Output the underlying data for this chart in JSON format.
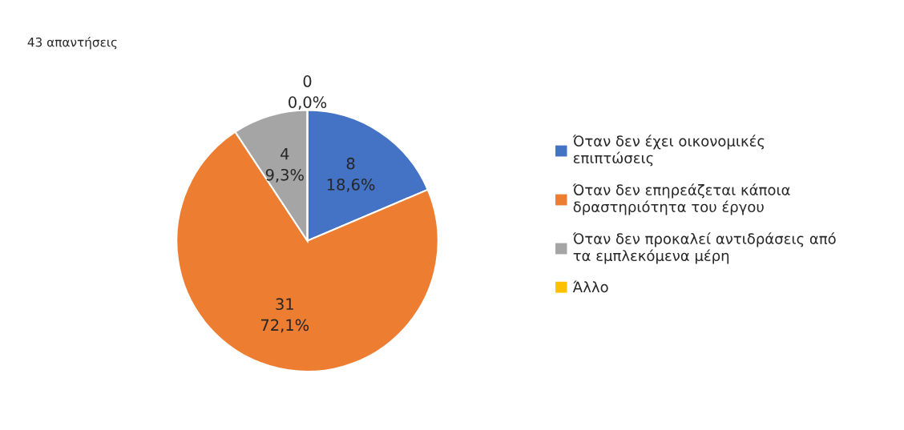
{
  "chart_data": {
    "type": "pie",
    "title": "43 απαντήσεις",
    "categories": [
      "Όταν δεν έχει οικονομικές επιπτώσεις",
      "Όταν δεν επηρεάζεται κάποια δραστηριότητα του έργου",
      "Όταν δεν προκαλεί αντιδράσεις από τα εμπλεκόμενα μέρη",
      "Άλλο"
    ],
    "values": [
      8,
      31,
      4,
      0
    ],
    "value_labels": [
      "8\n18,6%",
      "31\n72,1%",
      "4\n9,3%",
      "0\n0,0%"
    ],
    "colors": [
      "#4472c4",
      "#ed7d31",
      "#a5a5a5",
      "#ffc000"
    ],
    "legend": "right"
  }
}
